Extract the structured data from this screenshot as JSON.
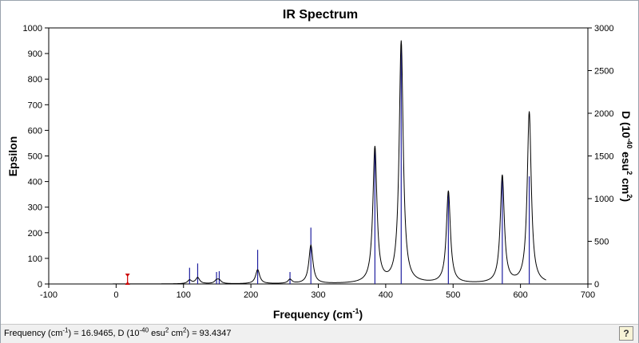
{
  "status_bar": {
    "freq_label": "Frequency (cm",
    "freq_exp": "-1",
    "freq_value": ") = 16.9465, D (10",
    "d_exp1": "-40",
    "d_unit": " esu",
    "d_exp2": "2",
    "d_unit2": " cm",
    "d_exp3": "2",
    "d_value": ") = 93.4347",
    "help_icon": "question-help-icon",
    "help_label": "?"
  },
  "chart_data": {
    "type": "line",
    "title": "IR Spectrum",
    "xlabel": "Frequency (cm",
    "xlabel_sup": "-1",
    "xlabel_end": ")",
    "ylabel": "Epsilon",
    "y2label_parts": [
      "D (10",
      "-40",
      " esu",
      "2",
      " cm",
      "2",
      ")"
    ],
    "xlim": [
      -100,
      700
    ],
    "ylim": [
      0,
      1000
    ],
    "y2lim": [
      0,
      3000
    ],
    "x_ticks": [
      -100,
      0,
      100,
      200,
      300,
      400,
      500,
      600,
      700
    ],
    "y_ticks": [
      0,
      100,
      200,
      300,
      400,
      500,
      600,
      700,
      800,
      900,
      1000
    ],
    "y2_ticks": [
      0,
      500,
      1000,
      1500,
      2000,
      2500,
      3000
    ],
    "curve_range": [
      -5,
      638
    ],
    "peak_width": 3.6,
    "peaks": [
      {
        "x": 109,
        "eps": 14
      },
      {
        "x": 121,
        "eps": 24
      },
      {
        "x": 149,
        "eps": 12
      },
      {
        "x": 153,
        "eps": 12
      },
      {
        "x": 210,
        "eps": 55
      },
      {
        "x": 258,
        "eps": 16
      },
      {
        "x": 289,
        "eps": 150
      },
      {
        "x": 384,
        "eps": 530
      },
      {
        "x": 423,
        "eps": 945
      },
      {
        "x": 493,
        "eps": 360
      },
      {
        "x": 573,
        "eps": 420
      },
      {
        "x": 613,
        "eps": 670
      }
    ],
    "sticks": [
      {
        "x": 109,
        "d": 190
      },
      {
        "x": 121,
        "d": 240
      },
      {
        "x": 149,
        "d": 140
      },
      {
        "x": 153,
        "d": 150
      },
      {
        "x": 210,
        "d": 400
      },
      {
        "x": 258,
        "d": 140
      },
      {
        "x": 289,
        "d": 660
      },
      {
        "x": 384,
        "d": 1580
      },
      {
        "x": 423,
        "d": 2800
      },
      {
        "x": 493,
        "d": 1060
      },
      {
        "x": 573,
        "d": 1270
      },
      {
        "x": 613,
        "d": 1260
      }
    ],
    "marker": {
      "x": 16.9465,
      "d": 93.4347
    },
    "colors": {
      "curve": "#000000",
      "sticks": "#2020a0",
      "marker": "#cc0000",
      "frame": "#000000"
    }
  }
}
